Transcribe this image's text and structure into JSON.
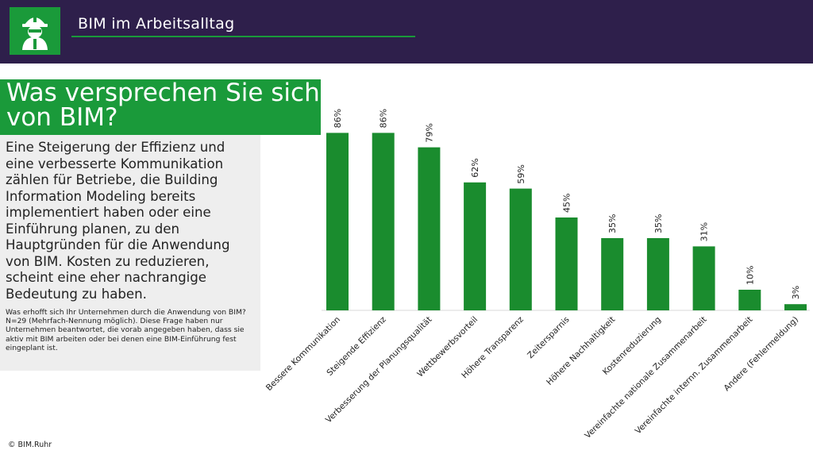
{
  "header": {
    "title": "BIM im Arbeitsalltag",
    "logo_icon": "bim-worker-icon"
  },
  "headline": "Was versprechen Sie sich von BIM?",
  "body_text": "Eine Steigerung der Effizienz und eine verbesserte Kommunikation zählen für Betriebe, die Building Information Modeling bereits implementiert haben oder eine Einführung planen, zu den Hauptgründen für die Anwendung von BIM. Kosten zu reduzieren, scheint eine eher nachrangige Bedeutung zu haben.",
  "note": {
    "question": "Was erhofft sich Ihr Unternehmen durch die Anwendung von BIM?",
    "sample": "N=29 (Mehrfach-Nennung möglich). Diese Frage haben nur Unternehmen beantwortet, die vorab angegeben haben, dass sie aktiv mit BIM arbeiten oder bei denen eine BIM-Einführung fest eingeplant ist."
  },
  "footer": {
    "copyright": "© BIM.Ruhr"
  },
  "colors": {
    "header_bg": "#2e1f4b",
    "accent_green": "#1a9a3a",
    "bar": "#1a8c2e",
    "panel_bg": "#eeeeee"
  },
  "chart_data": {
    "type": "bar",
    "categories": [
      "Bessere Kommunikation",
      "Steigende Effizienz",
      "Verbesserung der Planungsqualität",
      "Wettbewerbsvorteil",
      "Höhere Transparenz",
      "Zeitersparnis",
      "Höhere Nachhaltigkeit",
      "Kostenreduzierung",
      "Vereinfachte nationale Zusammenarbeit",
      "Vereinfachte internn. Zusammenarbeit",
      "Andere (Fehlermeldung)"
    ],
    "values": [
      86,
      86,
      79,
      62,
      59,
      45,
      35,
      35,
      31,
      10,
      3
    ],
    "value_labels": [
      "86%",
      "86%",
      "79%",
      "62%",
      "59%",
      "45%",
      "35%",
      "35%",
      "31%",
      "10%",
      "3%"
    ],
    "unit": "%",
    "ylim": [
      0,
      100
    ],
    "grid": false,
    "legend": "none",
    "title": "",
    "xlabel": "",
    "ylabel": ""
  }
}
